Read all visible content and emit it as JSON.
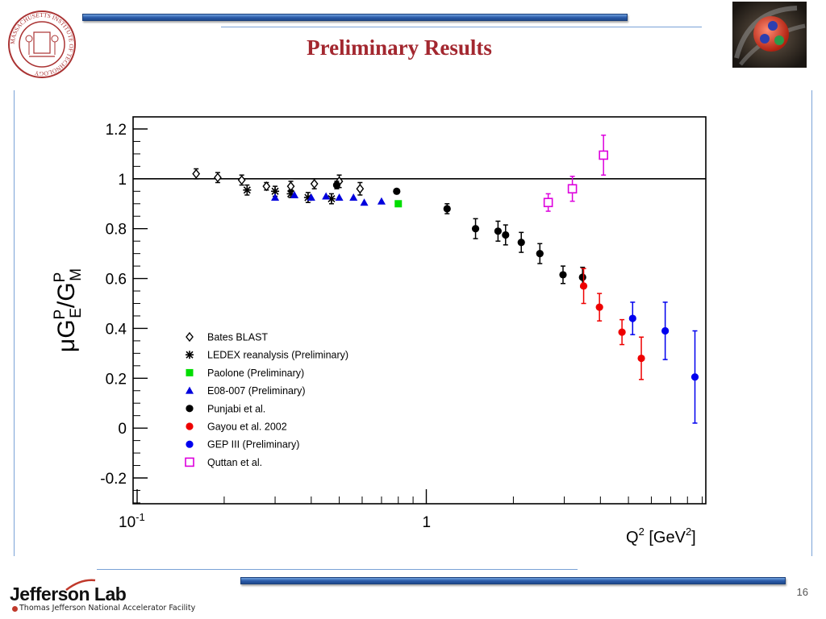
{
  "slide": {
    "title": "Preliminary Results",
    "page_number": "16",
    "logo_text": "Jefferson Lab",
    "logo_subtext": "Thomas Jefferson National Accelerator Facility",
    "seal_text": "MASSACHUSETTS INSTITUTE OF TECHNOLOGY"
  },
  "colors": {
    "title": "#a3272f",
    "accent_bar": "#2a5aa8",
    "accent_line": "#7aa2d6"
  },
  "chart_data": {
    "type": "scatter",
    "title": "",
    "xlabel": "Q2 [GeV2]",
    "ylabel": "μGEP/GMP",
    "xscale": "log",
    "xlim": [
      0.1,
      10
    ],
    "ylim": [
      -0.3,
      1.25
    ],
    "x_tick_labels": [
      "10-1",
      "1"
    ],
    "y_ticks": [
      -0.2,
      0,
      0.2,
      0.4,
      0.6,
      0.8,
      1,
      1.2
    ],
    "y_tick_labels": [
      "-0.2",
      "0",
      "0.2",
      "0.4",
      "0.6",
      "0.8",
      "1",
      "1.2"
    ],
    "reference_line": 1,
    "legend_position": "lower-left",
    "series": [
      {
        "name": "Bates BLAST",
        "marker": "diamond-open",
        "color": "#000000",
        "points": [
          {
            "x": 0.16,
            "y": 1.02,
            "err": 0.02
          },
          {
            "x": 0.19,
            "y": 1.005,
            "err": 0.02
          },
          {
            "x": 0.23,
            "y": 0.995,
            "err": 0.02
          },
          {
            "x": 0.28,
            "y": 0.97,
            "err": 0.015
          },
          {
            "x": 0.34,
            "y": 0.97,
            "err": 0.02
          },
          {
            "x": 0.41,
            "y": 0.98,
            "err": 0.02
          },
          {
            "x": 0.5,
            "y": 0.99,
            "err": 0.025
          },
          {
            "x": 0.59,
            "y": 0.96,
            "err": 0.025
          }
        ]
      },
      {
        "name": "LEDEX reanalysis (Preliminary)",
        "marker": "asterisk",
        "color": "#000000",
        "points": [
          {
            "x": 0.24,
            "y": 0.955,
            "err": 0.02
          },
          {
            "x": 0.3,
            "y": 0.95,
            "err": 0.02
          },
          {
            "x": 0.34,
            "y": 0.94,
            "err": 0.015
          },
          {
            "x": 0.39,
            "y": 0.925,
            "err": 0.02
          },
          {
            "x": 0.47,
            "y": 0.92,
            "err": 0.02
          }
        ]
      },
      {
        "name": "Paolone (Preliminary)",
        "marker": "square-filled",
        "color": "#00dd00",
        "points": [
          {
            "x": 0.8,
            "y": 0.9,
            "err": 0.0
          }
        ]
      },
      {
        "name": "E08-007 (Preliminary)",
        "marker": "triangle-filled",
        "color": "#0000dd",
        "points": [
          {
            "x": 0.3,
            "y": 0.925,
            "err": 0.0
          },
          {
            "x": 0.35,
            "y": 0.935,
            "err": 0.0
          },
          {
            "x": 0.4,
            "y": 0.925,
            "err": 0.0
          },
          {
            "x": 0.45,
            "y": 0.93,
            "err": 0.0
          },
          {
            "x": 0.5,
            "y": 0.925,
            "err": 0.0
          },
          {
            "x": 0.56,
            "y": 0.925,
            "err": 0.0
          },
          {
            "x": 0.61,
            "y": 0.905,
            "err": 0.0
          },
          {
            "x": 0.7,
            "y": 0.91,
            "err": 0.0
          }
        ]
      },
      {
        "name": "Punjabi et al.",
        "marker": "circle-filled",
        "color": "#000000",
        "points": [
          {
            "x": 0.49,
            "y": 0.975,
            "err": 0.015
          },
          {
            "x": 0.79,
            "y": 0.95,
            "err": 0.0
          },
          {
            "x": 1.18,
            "y": 0.88,
            "err": 0.02
          },
          {
            "x": 1.48,
            "y": 0.8,
            "err": 0.04
          },
          {
            "x": 1.77,
            "y": 0.79,
            "err": 0.04
          },
          {
            "x": 1.88,
            "y": 0.775,
            "err": 0.04
          },
          {
            "x": 2.13,
            "y": 0.745,
            "err": 0.04
          },
          {
            "x": 2.47,
            "y": 0.7,
            "err": 0.04
          },
          {
            "x": 2.97,
            "y": 0.615,
            "err": 0.035
          },
          {
            "x": 3.47,
            "y": 0.605,
            "err": 0.04
          }
        ]
      },
      {
        "name": "Gayou et al. 2002",
        "marker": "circle-filled",
        "color": "#ee0000",
        "points": [
          {
            "x": 3.5,
            "y": 0.57,
            "err": 0.07
          },
          {
            "x": 3.97,
            "y": 0.485,
            "err": 0.055
          },
          {
            "x": 4.75,
            "y": 0.385,
            "err": 0.05
          },
          {
            "x": 5.54,
            "y": 0.28,
            "err": 0.085
          }
        ]
      },
      {
        "name": "GEP III (Preliminary)",
        "marker": "circle-filled",
        "color": "#0000ee",
        "points": [
          {
            "x": 5.17,
            "y": 0.44,
            "err": 0.065
          },
          {
            "x": 6.7,
            "y": 0.39,
            "err": 0.115
          },
          {
            "x": 8.49,
            "y": 0.205,
            "err": 0.185
          }
        ]
      },
      {
        "name": "Quttan et al.",
        "marker": "square-open",
        "color": "#dd00dd",
        "points": [
          {
            "x": 2.64,
            "y": 0.905,
            "err": 0.035
          },
          {
            "x": 3.2,
            "y": 0.96,
            "err": 0.05
          },
          {
            "x": 4.1,
            "y": 1.095,
            "err": 0.08
          }
        ]
      }
    ]
  }
}
